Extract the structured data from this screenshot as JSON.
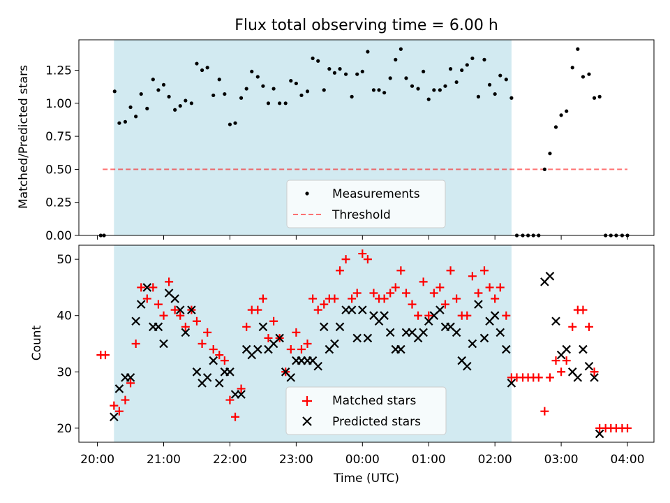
{
  "title": "Flux total observing time = 6.00 h",
  "colors": {
    "observing_span": "#add8e6",
    "threshold": "#ff0000",
    "measurements": "#000000",
    "matched": "#ff0000",
    "predicted": "#000000"
  },
  "chart_data": [
    {
      "type": "scatter",
      "title": "Flux total observing time = 6.00 h",
      "ylabel": "Matched/Predicted stars",
      "xlabel": "",
      "x_unit": "hours from 20:00 (UTC)",
      "xlim": [
        -0.28,
        8.4
      ],
      "ylim": [
        0,
        1.48
      ],
      "yticks": [
        0.0,
        0.25,
        0.5,
        0.75,
        1.0,
        1.25
      ],
      "ytick_labels": [
        "0.00",
        "0.25",
        "0.50",
        "0.75",
        "1.00",
        "1.25"
      ],
      "observing_span": [
        0.25,
        6.25
      ],
      "threshold": {
        "value": 0.5,
        "x_range": [
          0.08,
          8.0
        ],
        "style": "dashed"
      },
      "legend": {
        "position": "lower center",
        "entries": [
          "Measurements",
          "Threshold"
        ]
      },
      "series": [
        {
          "name": "Measurements",
          "marker": "dot",
          "x": [
            0.05,
            0.1,
            0.26,
            0.33,
            0.42,
            0.5,
            0.58,
            0.66,
            0.75,
            0.84,
            0.92,
            1.0,
            1.08,
            1.17,
            1.25,
            1.33,
            1.42,
            1.5,
            1.58,
            1.66,
            1.75,
            1.84,
            1.92,
            2.0,
            2.08,
            2.17,
            2.25,
            2.33,
            2.42,
            2.5,
            2.58,
            2.66,
            2.75,
            2.84,
            2.92,
            3.0,
            3.08,
            3.17,
            3.25,
            3.33,
            3.42,
            3.5,
            3.58,
            3.66,
            3.75,
            3.84,
            3.92,
            4.0,
            4.08,
            4.17,
            4.25,
            4.33,
            4.42,
            4.5,
            4.58,
            4.66,
            4.75,
            4.84,
            4.92,
            5.0,
            5.08,
            5.17,
            5.25,
            5.33,
            5.42,
            5.5,
            5.58,
            5.66,
            5.75,
            5.84,
            5.92,
            6.0,
            6.08,
            6.17,
            6.25,
            6.33,
            6.42,
            6.5,
            6.58,
            6.66,
            6.75,
            6.83,
            6.92,
            7.0,
            7.08,
            7.17,
            7.25,
            7.33,
            7.42,
            7.5,
            7.58,
            7.67,
            7.75,
            7.83,
            7.92,
            8.0
          ],
          "y": [
            0,
            0,
            1.09,
            0.85,
            0.86,
            0.97,
            0.9,
            1.07,
            0.96,
            1.18,
            1.1,
            1.14,
            1.05,
            0.95,
            0.98,
            1.02,
            1.0,
            1.3,
            1.25,
            1.27,
            1.06,
            1.18,
            1.07,
            0.84,
            0.85,
            1.04,
            1.11,
            1.24,
            1.2,
            1.13,
            1.0,
            1.11,
            1.0,
            1.0,
            1.17,
            1.15,
            1.06,
            1.09,
            1.34,
            1.32,
            1.1,
            1.26,
            1.23,
            1.26,
            1.22,
            1.05,
            1.22,
            1.24,
            1.39,
            1.1,
            1.1,
            1.08,
            1.19,
            1.33,
            1.41,
            1.19,
            1.13,
            1.11,
            1.24,
            1.03,
            1.1,
            1.1,
            1.13,
            1.26,
            1.16,
            1.25,
            1.29,
            1.34,
            1.05,
            1.33,
            1.14,
            1.07,
            1.21,
            1.18,
            1.04,
            0,
            0,
            0,
            0,
            0,
            0.5,
            0.62,
            0.82,
            0.91,
            0.94,
            1.27,
            1.41,
            1.2,
            1.22,
            1.04,
            1.05,
            0,
            0,
            0,
            0,
            0
          ]
        }
      ]
    },
    {
      "type": "scatter",
      "xlabel": "Time (UTC)",
      "ylabel": "Count",
      "x_unit": "hours from 20:00 (UTC)",
      "xlim": [
        -0.28,
        8.4
      ],
      "ylim": [
        17.5,
        52.5
      ],
      "yticks": [
        20,
        30,
        40,
        50
      ],
      "ytick_labels": [
        "20",
        "30",
        "40",
        "50"
      ],
      "xticks": [
        0,
        1,
        2,
        3,
        4,
        5,
        6,
        7,
        8
      ],
      "xtick_labels": [
        "20:00",
        "21:00",
        "22:00",
        "23:00",
        "00:00",
        "01:00",
        "02:00",
        "03:00",
        "04:00"
      ],
      "observing_span": [
        0.25,
        6.25
      ],
      "legend": {
        "position": "lower center",
        "entries": [
          "Matched stars",
          "Predicted stars"
        ]
      },
      "series": [
        {
          "name": "Matched stars",
          "marker": "plus",
          "points": [
            [
              0.05,
              33
            ],
            [
              0.12,
              33
            ],
            [
              0.25,
              24
            ],
            [
              0.33,
              23
            ],
            [
              0.42,
              25
            ],
            [
              0.5,
              28
            ],
            [
              0.58,
              35
            ],
            [
              0.66,
              45
            ],
            [
              0.75,
              43
            ],
            [
              0.84,
              45
            ],
            [
              0.92,
              42
            ],
            [
              1.0,
              40
            ],
            [
              1.08,
              46
            ],
            [
              1.17,
              41
            ],
            [
              1.25,
              40
            ],
            [
              1.33,
              38
            ],
            [
              1.42,
              41
            ],
            [
              1.5,
              39
            ],
            [
              1.58,
              35
            ],
            [
              1.66,
              37
            ],
            [
              1.75,
              34
            ],
            [
              1.84,
              33
            ],
            [
              1.92,
              32
            ],
            [
              2.0,
              25
            ],
            [
              2.08,
              22
            ],
            [
              2.17,
              27
            ],
            [
              2.25,
              38
            ],
            [
              2.33,
              41
            ],
            [
              2.42,
              41
            ],
            [
              2.5,
              43
            ],
            [
              2.58,
              36
            ],
            [
              2.66,
              39
            ],
            [
              2.75,
              36
            ],
            [
              2.84,
              30
            ],
            [
              2.92,
              34
            ],
            [
              3.0,
              37
            ],
            [
              3.08,
              34
            ],
            [
              3.17,
              35
            ],
            [
              3.25,
              43
            ],
            [
              3.33,
              41
            ],
            [
              3.42,
              42
            ],
            [
              3.5,
              43
            ],
            [
              3.58,
              43
            ],
            [
              3.66,
              48
            ],
            [
              3.75,
              50
            ],
            [
              3.84,
              43
            ],
            [
              3.92,
              44
            ],
            [
              4.0,
              51
            ],
            [
              4.08,
              50
            ],
            [
              4.17,
              44
            ],
            [
              4.25,
              43
            ],
            [
              4.33,
              43
            ],
            [
              4.42,
              44
            ],
            [
              4.5,
              45
            ],
            [
              4.58,
              48
            ],
            [
              4.66,
              44
            ],
            [
              4.75,
              42
            ],
            [
              4.84,
              40
            ],
            [
              4.92,
              46
            ],
            [
              5.0,
              40
            ],
            [
              5.08,
              44
            ],
            [
              5.17,
              45
            ],
            [
              5.25,
              42
            ],
            [
              5.33,
              48
            ],
            [
              5.42,
              43
            ],
            [
              5.5,
              40
            ],
            [
              5.58,
              40
            ],
            [
              5.66,
              47
            ],
            [
              5.75,
              44
            ],
            [
              5.84,
              48
            ],
            [
              5.92,
              45
            ],
            [
              6.0,
              43
            ],
            [
              6.08,
              45
            ],
            [
              6.17,
              40
            ],
            [
              6.25,
              29
            ],
            [
              6.33,
              29
            ],
            [
              6.42,
              29
            ],
            [
              6.5,
              29
            ],
            [
              6.58,
              29
            ],
            [
              6.66,
              29
            ],
            [
              6.75,
              23
            ],
            [
              6.83,
              29
            ],
            [
              6.92,
              32
            ],
            [
              7.0,
              30
            ],
            [
              7.08,
              32
            ],
            [
              7.17,
              38
            ],
            [
              7.25,
              41
            ],
            [
              7.33,
              41
            ],
            [
              7.42,
              38
            ],
            [
              7.5,
              30
            ],
            [
              7.58,
              20
            ],
            [
              7.67,
              20
            ],
            [
              7.75,
              20
            ],
            [
              7.83,
              20
            ],
            [
              7.92,
              20
            ],
            [
              8.0,
              20
            ]
          ]
        },
        {
          "name": "Predicted stars",
          "marker": "x",
          "points": [
            [
              0.25,
              22
            ],
            [
              0.33,
              27
            ],
            [
              0.42,
              29
            ],
            [
              0.5,
              29
            ],
            [
              0.58,
              39
            ],
            [
              0.66,
              42
            ],
            [
              0.75,
              45
            ],
            [
              0.84,
              38
            ],
            [
              0.92,
              38
            ],
            [
              1.0,
              35
            ],
            [
              1.08,
              44
            ],
            [
              1.17,
              43
            ],
            [
              1.25,
              41
            ],
            [
              1.33,
              37
            ],
            [
              1.42,
              41
            ],
            [
              1.5,
              30
            ],
            [
              1.58,
              28
            ],
            [
              1.66,
              29
            ],
            [
              1.75,
              32
            ],
            [
              1.84,
              28
            ],
            [
              1.92,
              30
            ],
            [
              2.0,
              30
            ],
            [
              2.08,
              26
            ],
            [
              2.17,
              26
            ],
            [
              2.25,
              34
            ],
            [
              2.33,
              33
            ],
            [
              2.42,
              34
            ],
            [
              2.5,
              38
            ],
            [
              2.58,
              34
            ],
            [
              2.66,
              35
            ],
            [
              2.75,
              36
            ],
            [
              2.84,
              30
            ],
            [
              2.92,
              29
            ],
            [
              3.0,
              32
            ],
            [
              3.08,
              32
            ],
            [
              3.17,
              32
            ],
            [
              3.25,
              32
            ],
            [
              3.33,
              31
            ],
            [
              3.42,
              38
            ],
            [
              3.5,
              34
            ],
            [
              3.58,
              35
            ],
            [
              3.66,
              38
            ],
            [
              3.75,
              41
            ],
            [
              3.84,
              41
            ],
            [
              3.92,
              36
            ],
            [
              4.0,
              41
            ],
            [
              4.08,
              36
            ],
            [
              4.17,
              40
            ],
            [
              4.25,
              39
            ],
            [
              4.33,
              40
            ],
            [
              4.42,
              37
            ],
            [
              4.5,
              34
            ],
            [
              4.58,
              34
            ],
            [
              4.66,
              37
            ],
            [
              4.75,
              37
            ],
            [
              4.84,
              36
            ],
            [
              4.92,
              37
            ],
            [
              5.0,
              39
            ],
            [
              5.08,
              40
            ],
            [
              5.17,
              41
            ],
            [
              5.25,
              38
            ],
            [
              5.33,
              38
            ],
            [
              5.42,
              37
            ],
            [
              5.5,
              32
            ],
            [
              5.58,
              31
            ],
            [
              5.66,
              35
            ],
            [
              5.75,
              42
            ],
            [
              5.84,
              36
            ],
            [
              5.92,
              39
            ],
            [
              6.0,
              40
            ],
            [
              6.08,
              37
            ],
            [
              6.17,
              34
            ],
            [
              6.25,
              28
            ],
            [
              6.75,
              46
            ],
            [
              6.83,
              47
            ],
            [
              6.92,
              39
            ],
            [
              7.0,
              33
            ],
            [
              7.08,
              34
            ],
            [
              7.17,
              30
            ],
            [
              7.25,
              29
            ],
            [
              7.33,
              34
            ],
            [
              7.42,
              31
            ],
            [
              7.5,
              29
            ],
            [
              7.58,
              19
            ]
          ]
        }
      ]
    }
  ]
}
